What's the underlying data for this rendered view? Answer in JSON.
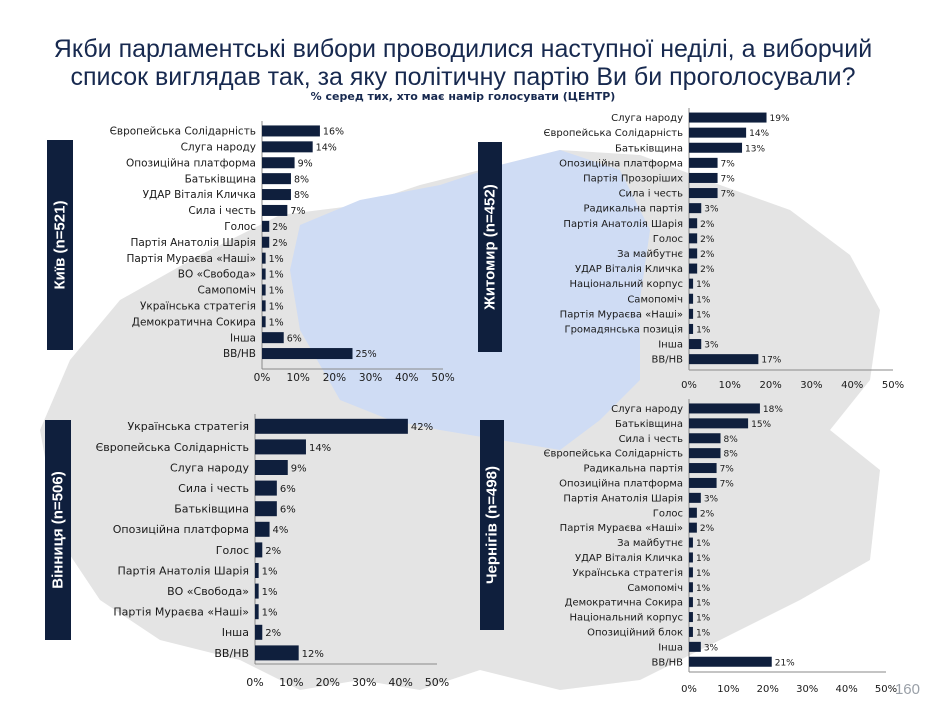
{
  "title": {
    "line1": "Якби парламентські вибори проводилися наступної неділі, а виборчий",
    "line2": "список виглядав так, за яку політичну партію Ви би проголосували?",
    "subtitle": "% серед тих, хто має намір голосувати (ЦЕНТР)"
  },
  "page_number": "160",
  "colors": {
    "bar": "#0f1f3d",
    "map_region": "#cfdcf4",
    "map_country": "#e4e4e4",
    "text": "#1a1a1a"
  },
  "chart_data": [
    {
      "type": "bar",
      "orientation": "horizontal",
      "region_label": "Київ (n=521)",
      "categories": [
        "Європейська Солідарність",
        "Слуга народу",
        "Опозиційна платформа",
        "Батьківщина",
        "УДАР Віталія Кличка",
        "Сила і честь",
        "Голос",
        "Партія Анатолія Шарія",
        "Партія Мураєва «Наші»",
        "ВО «Свобода»",
        "Самопоміч",
        "Українська стратегія",
        "Демократична Сокира",
        "Інша",
        "ВВ/НВ"
      ],
      "values": [
        16,
        14,
        9,
        8,
        8,
        7,
        2,
        2,
        1,
        1,
        1,
        1,
        1,
        6,
        25
      ],
      "value_labels": [
        "16%",
        "14%",
        "9%",
        "8%",
        "8%",
        "7%",
        "2%",
        "2%",
        "1%",
        "1%",
        "1%",
        "1%",
        "1%",
        "6%",
        "25%"
      ],
      "xlim": [
        0,
        50
      ],
      "xticks": [
        "0%",
        "10%",
        "20%",
        "30%",
        "40%",
        "50%"
      ]
    },
    {
      "type": "bar",
      "orientation": "horizontal",
      "region_label": "Житомир (n=452)",
      "categories": [
        "Слуга народу",
        "Європейська Солідарність",
        "Батьківщина",
        "Опозиційна платформа",
        "Партія Прозоріших",
        "Сила і честь",
        "Радикальна партія",
        "Партія Анатолія Шарія",
        "Голос",
        "За майбутнє",
        "УДАР Віталія Кличка",
        "Національний корпус",
        "Самопоміч",
        "Партія Мураєва «Наші»",
        "Громадянська позиція",
        "Інша",
        "ВВ/НВ"
      ],
      "values": [
        19,
        14,
        13,
        7,
        7,
        7,
        3,
        2,
        2,
        2,
        2,
        1,
        1,
        1,
        1,
        3,
        17
      ],
      "value_labels": [
        "19%",
        "14%",
        "13%",
        "7%",
        "7%",
        "7%",
        "3%",
        "2%",
        "2%",
        "2%",
        "2%",
        "1%",
        "1%",
        "1%",
        "1%",
        "3%",
        "17%"
      ],
      "xlim": [
        0,
        50
      ],
      "xticks": [
        "0%",
        "10%",
        "20%",
        "30%",
        "40%",
        "50%"
      ]
    },
    {
      "type": "bar",
      "orientation": "horizontal",
      "region_label": "Вінниця (n=506)",
      "categories": [
        "Українська стратегія",
        "Європейська Солідарність",
        "Слуга народу",
        "Сила і честь",
        "Батьківщина",
        "Опозиційна платформа",
        "Голос",
        "Партія Анатолія Шарія",
        "ВО «Свобода»",
        "Партія Мураєва «Наші»",
        "Інша",
        "ВВ/НВ"
      ],
      "values": [
        42,
        14,
        9,
        6,
        6,
        4,
        2,
        1,
        1,
        1,
        2,
        12
      ],
      "value_labels": [
        "42%",
        "14%",
        "9%",
        "6%",
        "6%",
        "4%",
        "2%",
        "1%",
        "1%",
        "1%",
        "2%",
        "12%"
      ],
      "xlim": [
        0,
        50
      ],
      "xticks": [
        "0%",
        "10%",
        "20%",
        "30%",
        "40%",
        "50%"
      ]
    },
    {
      "type": "bar",
      "orientation": "horizontal",
      "region_label": "Чернігів (n=498)",
      "categories": [
        "Слуга народу",
        "Батьківщина",
        "Сила і честь",
        "Європейська Солідарність",
        "Радикальна партія",
        "Опозиційна платформа",
        "Партія Анатолія Шарія",
        "Голос",
        "Партія Мураєва «Наші»",
        "За майбутнє",
        "УДАР Віталія Кличка",
        "Українська стратегія",
        "Самопоміч",
        "Демократична Сокира",
        "Національний корпус",
        "Опозиційний блок",
        "Інша",
        "ВВ/НВ"
      ],
      "values": [
        18,
        15,
        8,
        8,
        7,
        7,
        3,
        2,
        2,
        1,
        1,
        1,
        1,
        1,
        1,
        1,
        3,
        21
      ],
      "value_labels": [
        "18%",
        "15%",
        "8%",
        "8%",
        "7%",
        "7%",
        "3%",
        "2%",
        "2%",
        "1%",
        "1%",
        "1%",
        "1%",
        "1%",
        "1%",
        "1%",
        "3%",
        "21%"
      ],
      "xlim": [
        0,
        50
      ],
      "xticks": [
        "0%",
        "10%",
        "20%",
        "30%",
        "40%",
        "50%"
      ]
    }
  ]
}
